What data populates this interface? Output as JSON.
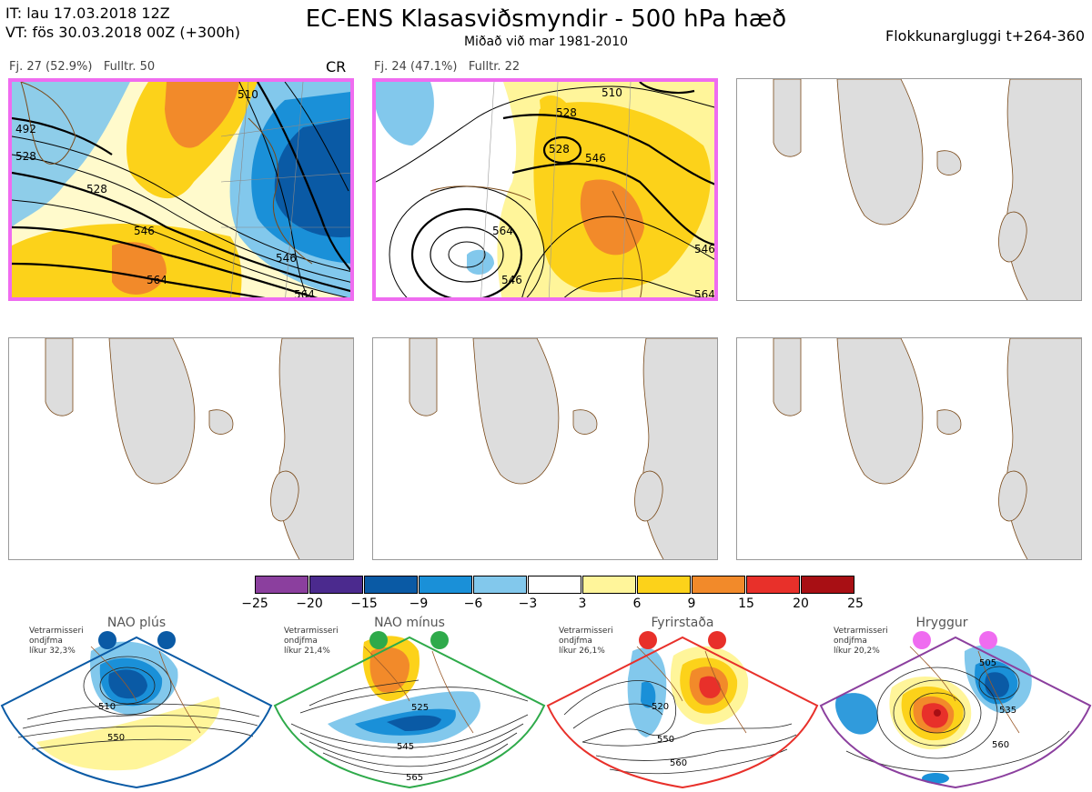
{
  "header": {
    "it_line": "IT: lau 17.03.2018 12Z",
    "vt_line": "VT: fös 30.03.2018 00Z  (+300h)",
    "title": "EC-ENS Klasasviðsmyndir - 500 hPa hæð",
    "subtitle": "Miðað við mar 1981-2010",
    "window": "Flokkunargluggi t+264-360"
  },
  "panels": [
    {
      "label_fj": "Fj. 27 (52.9%)",
      "label_fulltr": "Fulltr. 50",
      "regime_tag": "CR",
      "highlighted": true,
      "contour_labels": [
        "510",
        "528",
        "546",
        "564",
        "492",
        "528",
        "546",
        "564"
      ]
    },
    {
      "label_fj": "Fj. 24 (47.1%)",
      "label_fulltr": "Fulltr. 22",
      "regime_tag": "",
      "highlighted": true,
      "contour_labels": [
        "510",
        "528",
        "528",
        "546",
        "546",
        "546",
        "564",
        "564"
      ]
    },
    {
      "label_fj": "",
      "label_fulltr": "",
      "regime_tag": "",
      "highlighted": false,
      "contour_labels": []
    },
    {
      "label_fj": "",
      "label_fulltr": "",
      "regime_tag": "",
      "highlighted": false,
      "contour_labels": []
    },
    {
      "label_fj": "",
      "label_fulltr": "",
      "regime_tag": "",
      "highlighted": false,
      "contour_labels": []
    },
    {
      "label_fj": "",
      "label_fulltr": "",
      "regime_tag": "",
      "highlighted": false,
      "contour_labels": []
    }
  ],
  "colorbar": {
    "ticks": [
      "−25",
      "−20",
      "−15",
      "−9",
      "−6",
      "−3",
      "3",
      "6",
      "9",
      "15",
      "20",
      "25"
    ],
    "colors": [
      "#8b3f9e",
      "#4b2a8e",
      "#0a5aa5",
      "#1a90d8",
      "#82c8ec",
      "#ffffff",
      "#fff59a",
      "#fcd21a",
      "#f28a2a",
      "#e8302a",
      "#a80f14"
    ]
  },
  "regimes": [
    {
      "name": "NAO plús",
      "note": "Vetrarmisseri\nondjfma\nlíkur 32,3%",
      "note_lines": [
        "Vetrarmisseri",
        "ondjfma",
        "líkur 32,3%"
      ],
      "border_color": "#0a5aa5",
      "dot_color": "#0a5aa5",
      "contour_labels": [
        "510",
        "550"
      ]
    },
    {
      "name": "NAO mínus",
      "note_lines": [
        "Vetrarmisseri",
        "ondjfma",
        "líkur 21,4%"
      ],
      "border_color": "#2eaa4a",
      "dot_color": "#2eaa4a",
      "contour_labels": [
        "525",
        "545",
        "565"
      ]
    },
    {
      "name": "Fyrirstaða",
      "note_lines": [
        "Vetrarmisseri",
        "ondjfma",
        "líkur 26,1%"
      ],
      "border_color": "#e8302a",
      "dot_color": "#e8302a",
      "contour_labels": [
        "520",
        "550",
        "560"
      ]
    },
    {
      "name": "Hryggur",
      "note_lines": [
        "Vetrarmisseri",
        "ondjfma",
        "líkur 20,2%"
      ],
      "border_color": "#8b3f9e",
      "dot_color": "#ef6cf0",
      "contour_labels": [
        "505",
        "535",
        "560"
      ]
    }
  ]
}
